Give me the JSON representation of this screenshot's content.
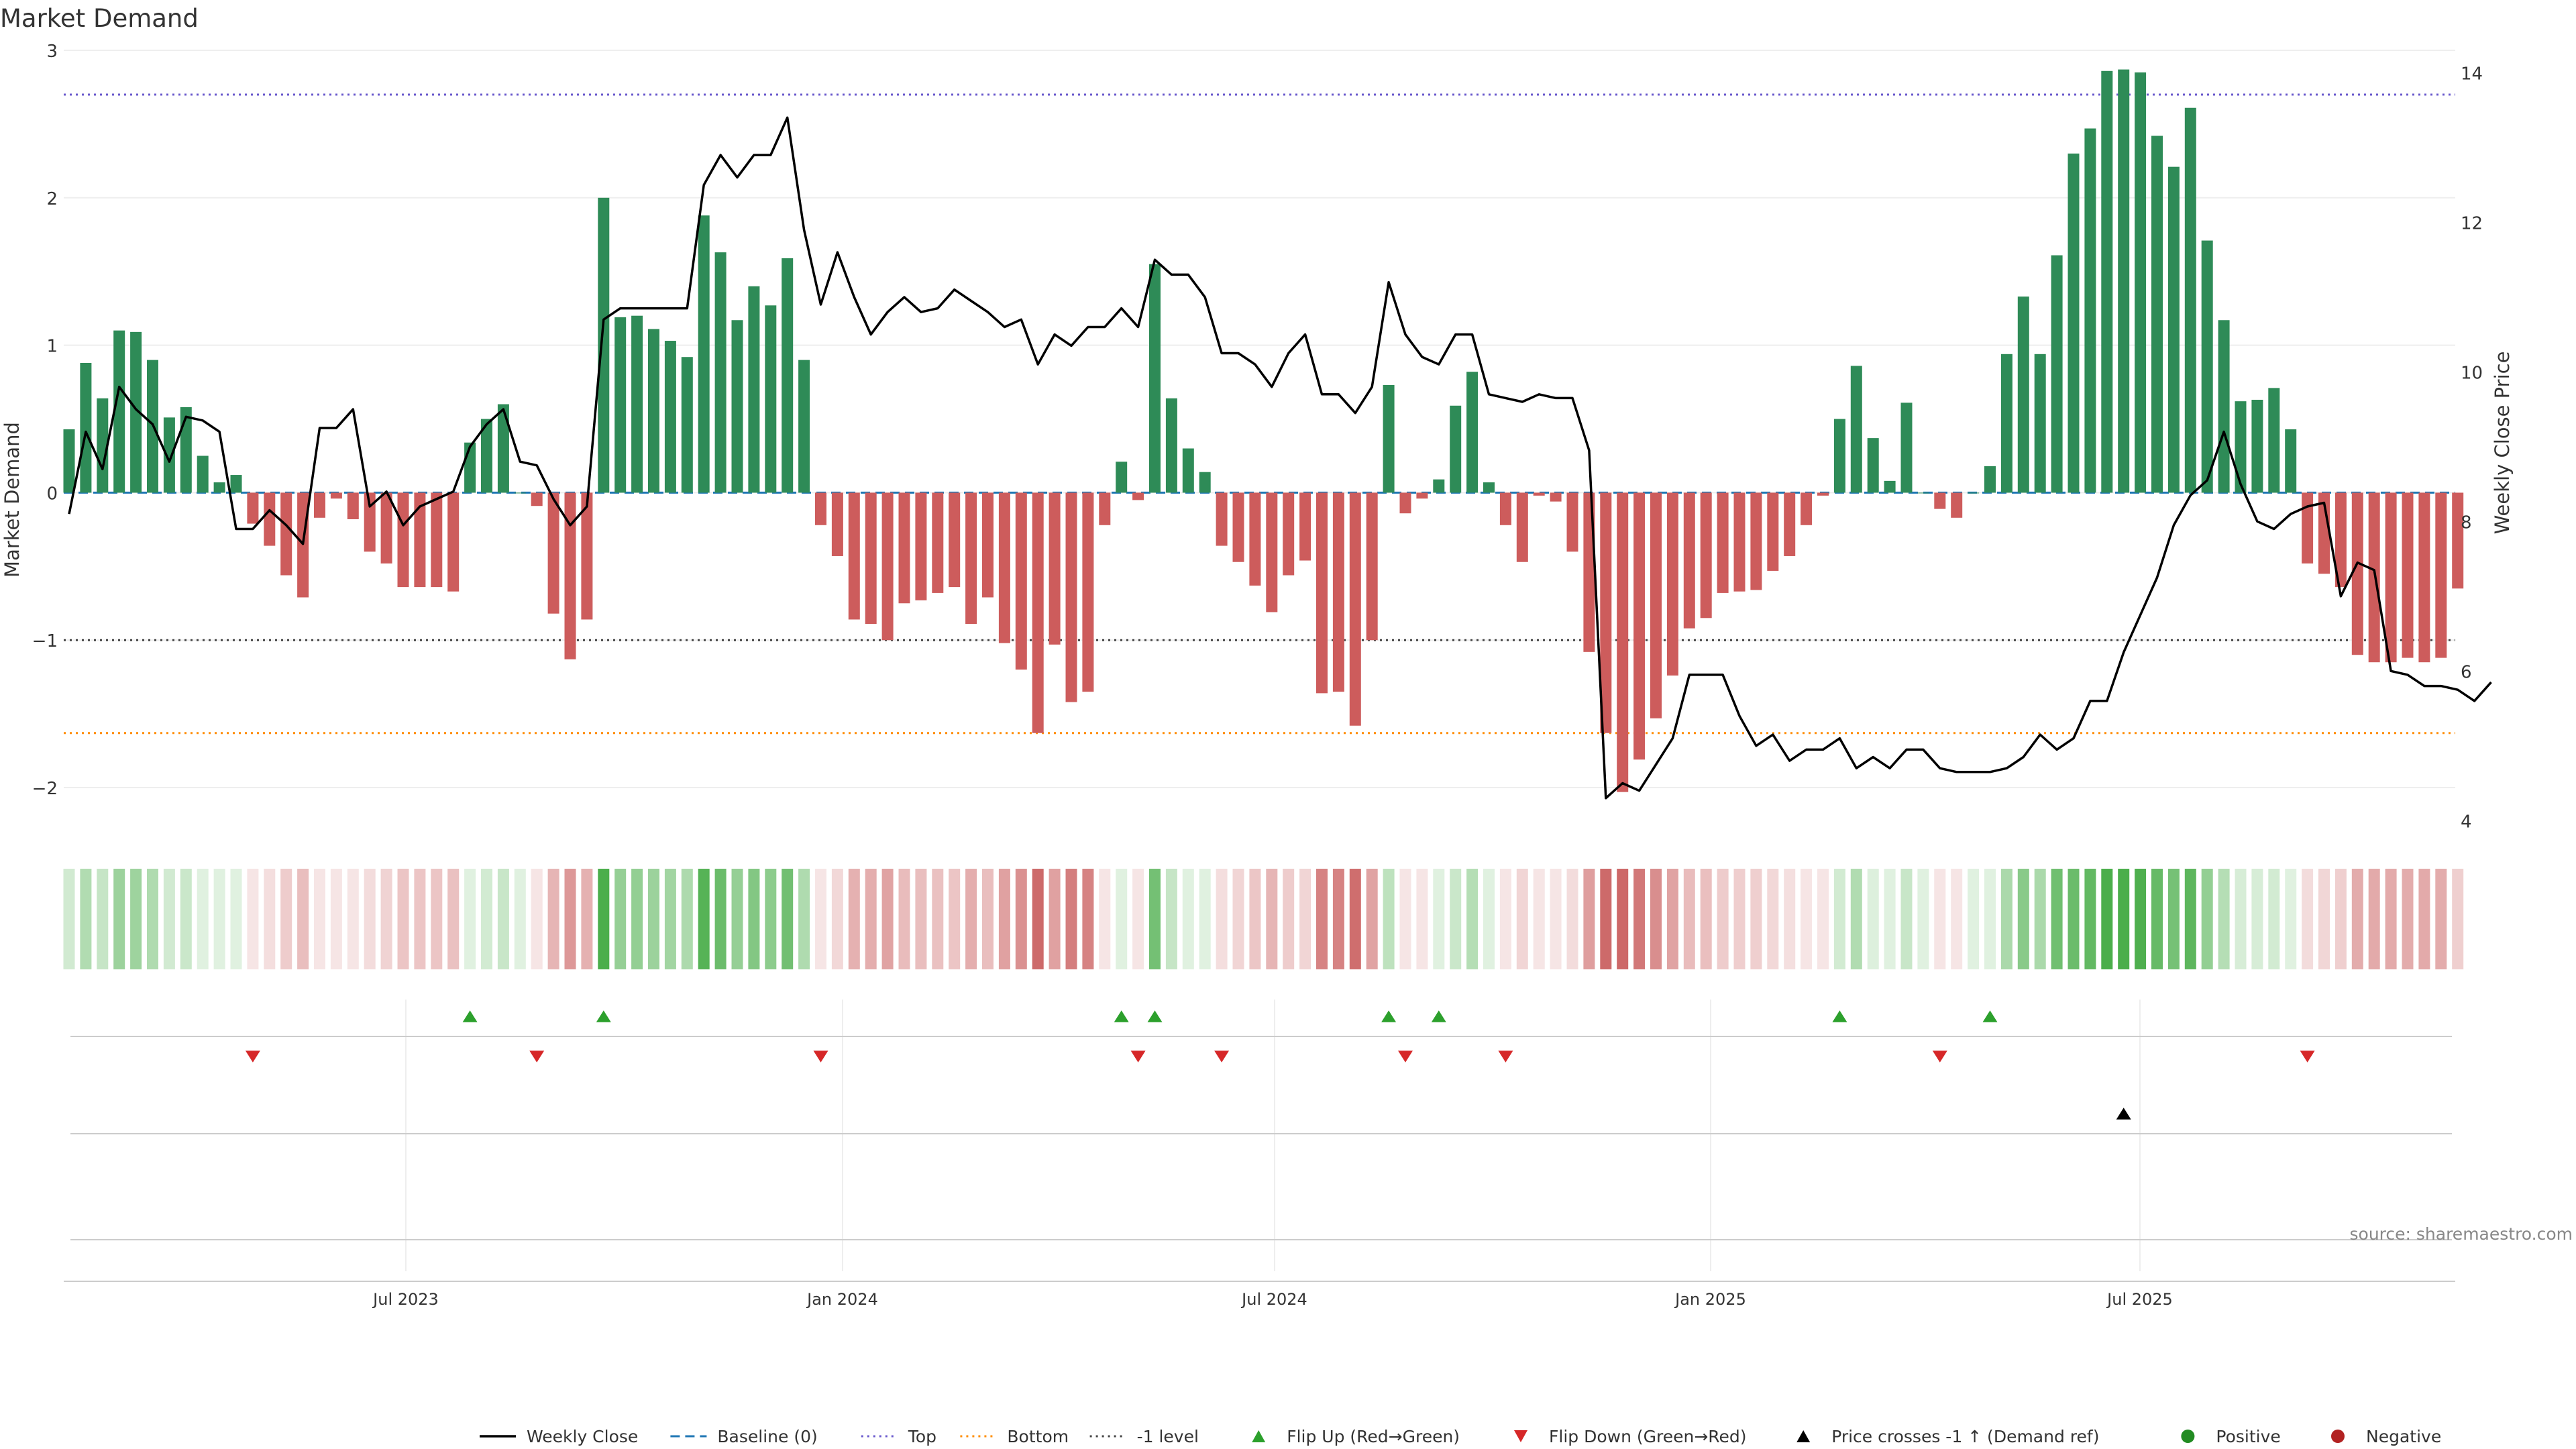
{
  "chart_data": {
    "type": "bar",
    "title": "Market Demand",
    "ylabel": "Market Demand",
    "y2label": "Weekly Close Price",
    "ylim": [
      -2.3,
      3.0
    ],
    "y2lim": [
      4,
      14
    ],
    "yticks": [
      {
        "value": 3,
        "label": "3"
      },
      {
        "value": 2,
        "label": "2"
      },
      {
        "value": 1,
        "label": "1"
      },
      {
        "value": 0,
        "label": "0"
      },
      {
        "value": -1,
        "label": "−1"
      },
      {
        "value": -2,
        "label": "−2"
      }
    ],
    "y2ticks": [
      "14",
      "12",
      "10",
      "8",
      "6",
      "4"
    ],
    "xticks": [
      "Jul 2023",
      "Jan 2024",
      "Jul 2024",
      "Jan 2025",
      "Jul 2025"
    ],
    "source": "source: sharemaestro.com",
    "reference_lines": {
      "top": 2.7,
      "bottom": -1.63,
      "minus_one": -1.0,
      "baseline": 0
    },
    "colors": {
      "positive": "#2e8b57",
      "negative": "#cd5c5c",
      "price": "#000000",
      "baseline": "#1f77b4",
      "top": "#6a5acd",
      "bottom": "#ff8c00",
      "minus_one": "#444444",
      "flip_up": "#2ca02c",
      "flip_down": "#d62728",
      "cross": "#000000",
      "pos_dot": "#228b22",
      "neg_dot": "#b22222"
    },
    "legend": [
      {
        "label": "Weekly Close",
        "kind": "line"
      },
      {
        "label": "Baseline (0)",
        "kind": "dash"
      },
      {
        "label": "Top",
        "kind": "dot-top"
      },
      {
        "label": "Bottom",
        "kind": "dot-bottom"
      },
      {
        "label": "-1 level",
        "kind": "dot-minus"
      },
      {
        "label": "Flip Up (Red→Green)",
        "kind": "tri-up"
      },
      {
        "label": "Flip Down (Green→Red)",
        "kind": "tri-down"
      },
      {
        "label": "Price crosses -1 ↑ (Demand ref)",
        "kind": "tri-black"
      },
      {
        "label": "Positive",
        "kind": "dot-pos"
      },
      {
        "label": "Negative",
        "kind": "dot-neg"
      }
    ],
    "demand": [
      0.43,
      0.88,
      0.64,
      1.1,
      1.09,
      0.9,
      0.51,
      0.58,
      0.25,
      0.07,
      0.12,
      -0.21,
      -0.36,
      -0.56,
      -0.71,
      -0.17,
      -0.04,
      -0.18,
      -0.4,
      -0.48,
      -0.64,
      -0.64,
      -0.64,
      -0.67,
      0.34,
      0.5,
      0.6,
      0.0,
      -0.09,
      -0.82,
      -1.13,
      -0.86,
      2.0,
      1.19,
      1.2,
      1.11,
      1.03,
      0.92,
      1.88,
      1.63,
      1.17,
      1.4,
      1.27,
      1.59,
      0.9,
      -0.22,
      -0.43,
      -0.86,
      -0.89,
      -1.0,
      -0.75,
      -0.73,
      -0.68,
      -0.64,
      -0.89,
      -0.71,
      -1.02,
      -1.2,
      -1.63,
      -1.03,
      -1.42,
      -1.35,
      -0.22,
      0.21,
      -0.05,
      1.55,
      0.64,
      0.3,
      0.14,
      -0.36,
      -0.47,
      -0.63,
      -0.81,
      -0.56,
      -0.46,
      -1.36,
      -1.35,
      -1.58,
      -1.0,
      0.73,
      -0.14,
      -0.04,
      0.09,
      0.59,
      0.82,
      0.07,
      -0.22,
      -0.47,
      -0.02,
      -0.06,
      -0.4,
      -1.08,
      -1.63,
      -2.03,
      -1.81,
      -1.53,
      -1.24,
      -0.92,
      -0.85,
      -0.68,
      -0.67,
      -0.66,
      -0.53,
      -0.43,
      -0.22,
      -0.02,
      0.5,
      0.86,
      0.37,
      0.08,
      0.61,
      0.0,
      -0.11,
      -0.17,
      0.0,
      0.18,
      0.94,
      1.33,
      0.94,
      1.61,
      2.3,
      2.47,
      2.86,
      2.87,
      2.85,
      2.42,
      2.21,
      2.61,
      1.71,
      1.17,
      0.62,
      0.63,
      0.71,
      0.43,
      -0.48,
      -0.55,
      -0.64,
      -1.1,
      -1.15,
      -1.15,
      -1.12,
      -1.15,
      -1.12,
      -0.65
    ],
    "price": [
      8.1,
      9.2,
      8.7,
      9.8,
      9.5,
      9.3,
      8.8,
      9.4,
      9.35,
      9.2,
      7.9,
      7.9,
      8.15,
      7.95,
      7.7,
      9.25,
      9.25,
      9.5,
      8.2,
      8.4,
      7.95,
      8.2,
      8.3,
      8.4,
      9.0,
      9.3,
      9.5,
      8.8,
      8.75,
      8.3,
      7.95,
      8.2,
      10.7,
      10.85,
      10.85,
      10.85,
      10.85,
      10.85,
      12.5,
      12.9,
      12.6,
      12.9,
      12.9,
      13.4,
      11.9,
      10.9,
      11.6,
      11.0,
      10.5,
      10.8,
      11.0,
      10.8,
      10.85,
      11.1,
      10.95,
      10.8,
      10.6,
      10.7,
      10.1,
      10.5,
      10.35,
      10.6,
      10.6,
      10.85,
      10.6,
      11.5,
      11.3,
      11.3,
      11.0,
      10.25,
      10.25,
      10.1,
      9.8,
      10.25,
      10.5,
      9.7,
      9.7,
      9.45,
      9.8,
      11.2,
      10.5,
      10.2,
      10.1,
      10.5,
      10.5,
      9.7,
      9.65,
      9.6,
      9.7,
      9.65,
      9.65,
      8.95,
      4.3,
      4.5,
      4.4,
      4.75,
      5.1,
      5.95,
      5.95,
      5.95,
      5.4,
      5.0,
      5.15,
      4.8,
      4.95,
      4.95,
      5.1,
      4.7,
      4.85,
      4.7,
      4.95,
      4.95,
      4.7,
      4.65,
      4.65,
      4.65,
      4.7,
      4.85,
      5.15,
      4.95,
      5.1,
      5.6,
      5.6,
      6.25,
      6.75,
      7.25,
      7.95,
      8.35,
      8.55,
      9.2,
      8.5,
      8.0,
      7.9,
      8.1,
      8.2,
      8.25,
      7.0,
      7.45,
      7.35,
      6.0,
      5.95,
      5.8,
      5.8,
      5.75,
      5.6,
      5.85
    ],
    "strip": [
      0.26,
      0.43,
      0.32,
      0.55,
      0.54,
      0.45,
      0.26,
      0.29,
      0.12,
      0.04,
      0.06,
      0.13,
      0.22,
      0.34,
      0.43,
      0.1,
      0.02,
      0.11,
      0.24,
      0.29,
      0.39,
      0.39,
      0.39,
      0.41,
      0.17,
      0.25,
      0.3,
      0.0,
      0.05,
      0.49,
      0.68,
      0.52,
      1.0,
      0.59,
      0.6,
      0.55,
      0.52,
      0.46,
      0.94,
      0.82,
      0.59,
      0.7,
      0.64,
      0.79,
      0.45,
      0.13,
      0.26,
      0.52,
      0.54,
      0.61,
      0.45,
      0.44,
      0.41,
      0.39,
      0.54,
      0.43,
      0.62,
      0.73,
      0.99,
      0.62,
      0.86,
      0.82,
      0.13,
      0.1,
      0.03,
      0.78,
      0.32,
      0.15,
      0.07,
      0.22,
      0.28,
      0.38,
      0.49,
      0.34,
      0.28,
      0.82,
      0.82,
      0.96,
      0.61,
      0.37,
      0.08,
      0.02,
      0.05,
      0.29,
      0.41,
      0.04,
      0.13,
      0.28,
      0.01,
      0.04,
      0.24,
      0.65,
      0.99,
      1.0,
      0.89,
      0.75,
      0.61,
      0.45,
      0.42,
      0.34,
      0.33,
      0.32,
      0.26,
      0.21,
      0.11,
      0.01,
      0.25,
      0.43,
      0.19,
      0.04,
      0.31,
      0.0,
      0.05,
      0.08,
      0.0,
      0.09,
      0.47,
      0.66,
      0.47,
      0.8,
      0.82,
      0.87,
      1.0,
      1.0,
      0.99,
      0.85,
      0.77,
      0.91,
      0.6,
      0.41,
      0.22,
      0.22,
      0.25,
      0.15,
      0.24,
      0.27,
      0.32,
      0.55,
      0.57,
      0.57,
      0.55,
      0.57,
      0.55,
      0.32
    ],
    "flip_up_index": [
      24,
      32,
      63,
      65,
      79,
      82,
      106,
      115
    ],
    "flip_down_index": [
      11,
      28,
      45,
      64,
      69,
      80,
      86,
      112,
      134
    ],
    "cross_up_index": [
      123
    ],
    "pos_dot_index": [],
    "neg_dot_index": []
  }
}
